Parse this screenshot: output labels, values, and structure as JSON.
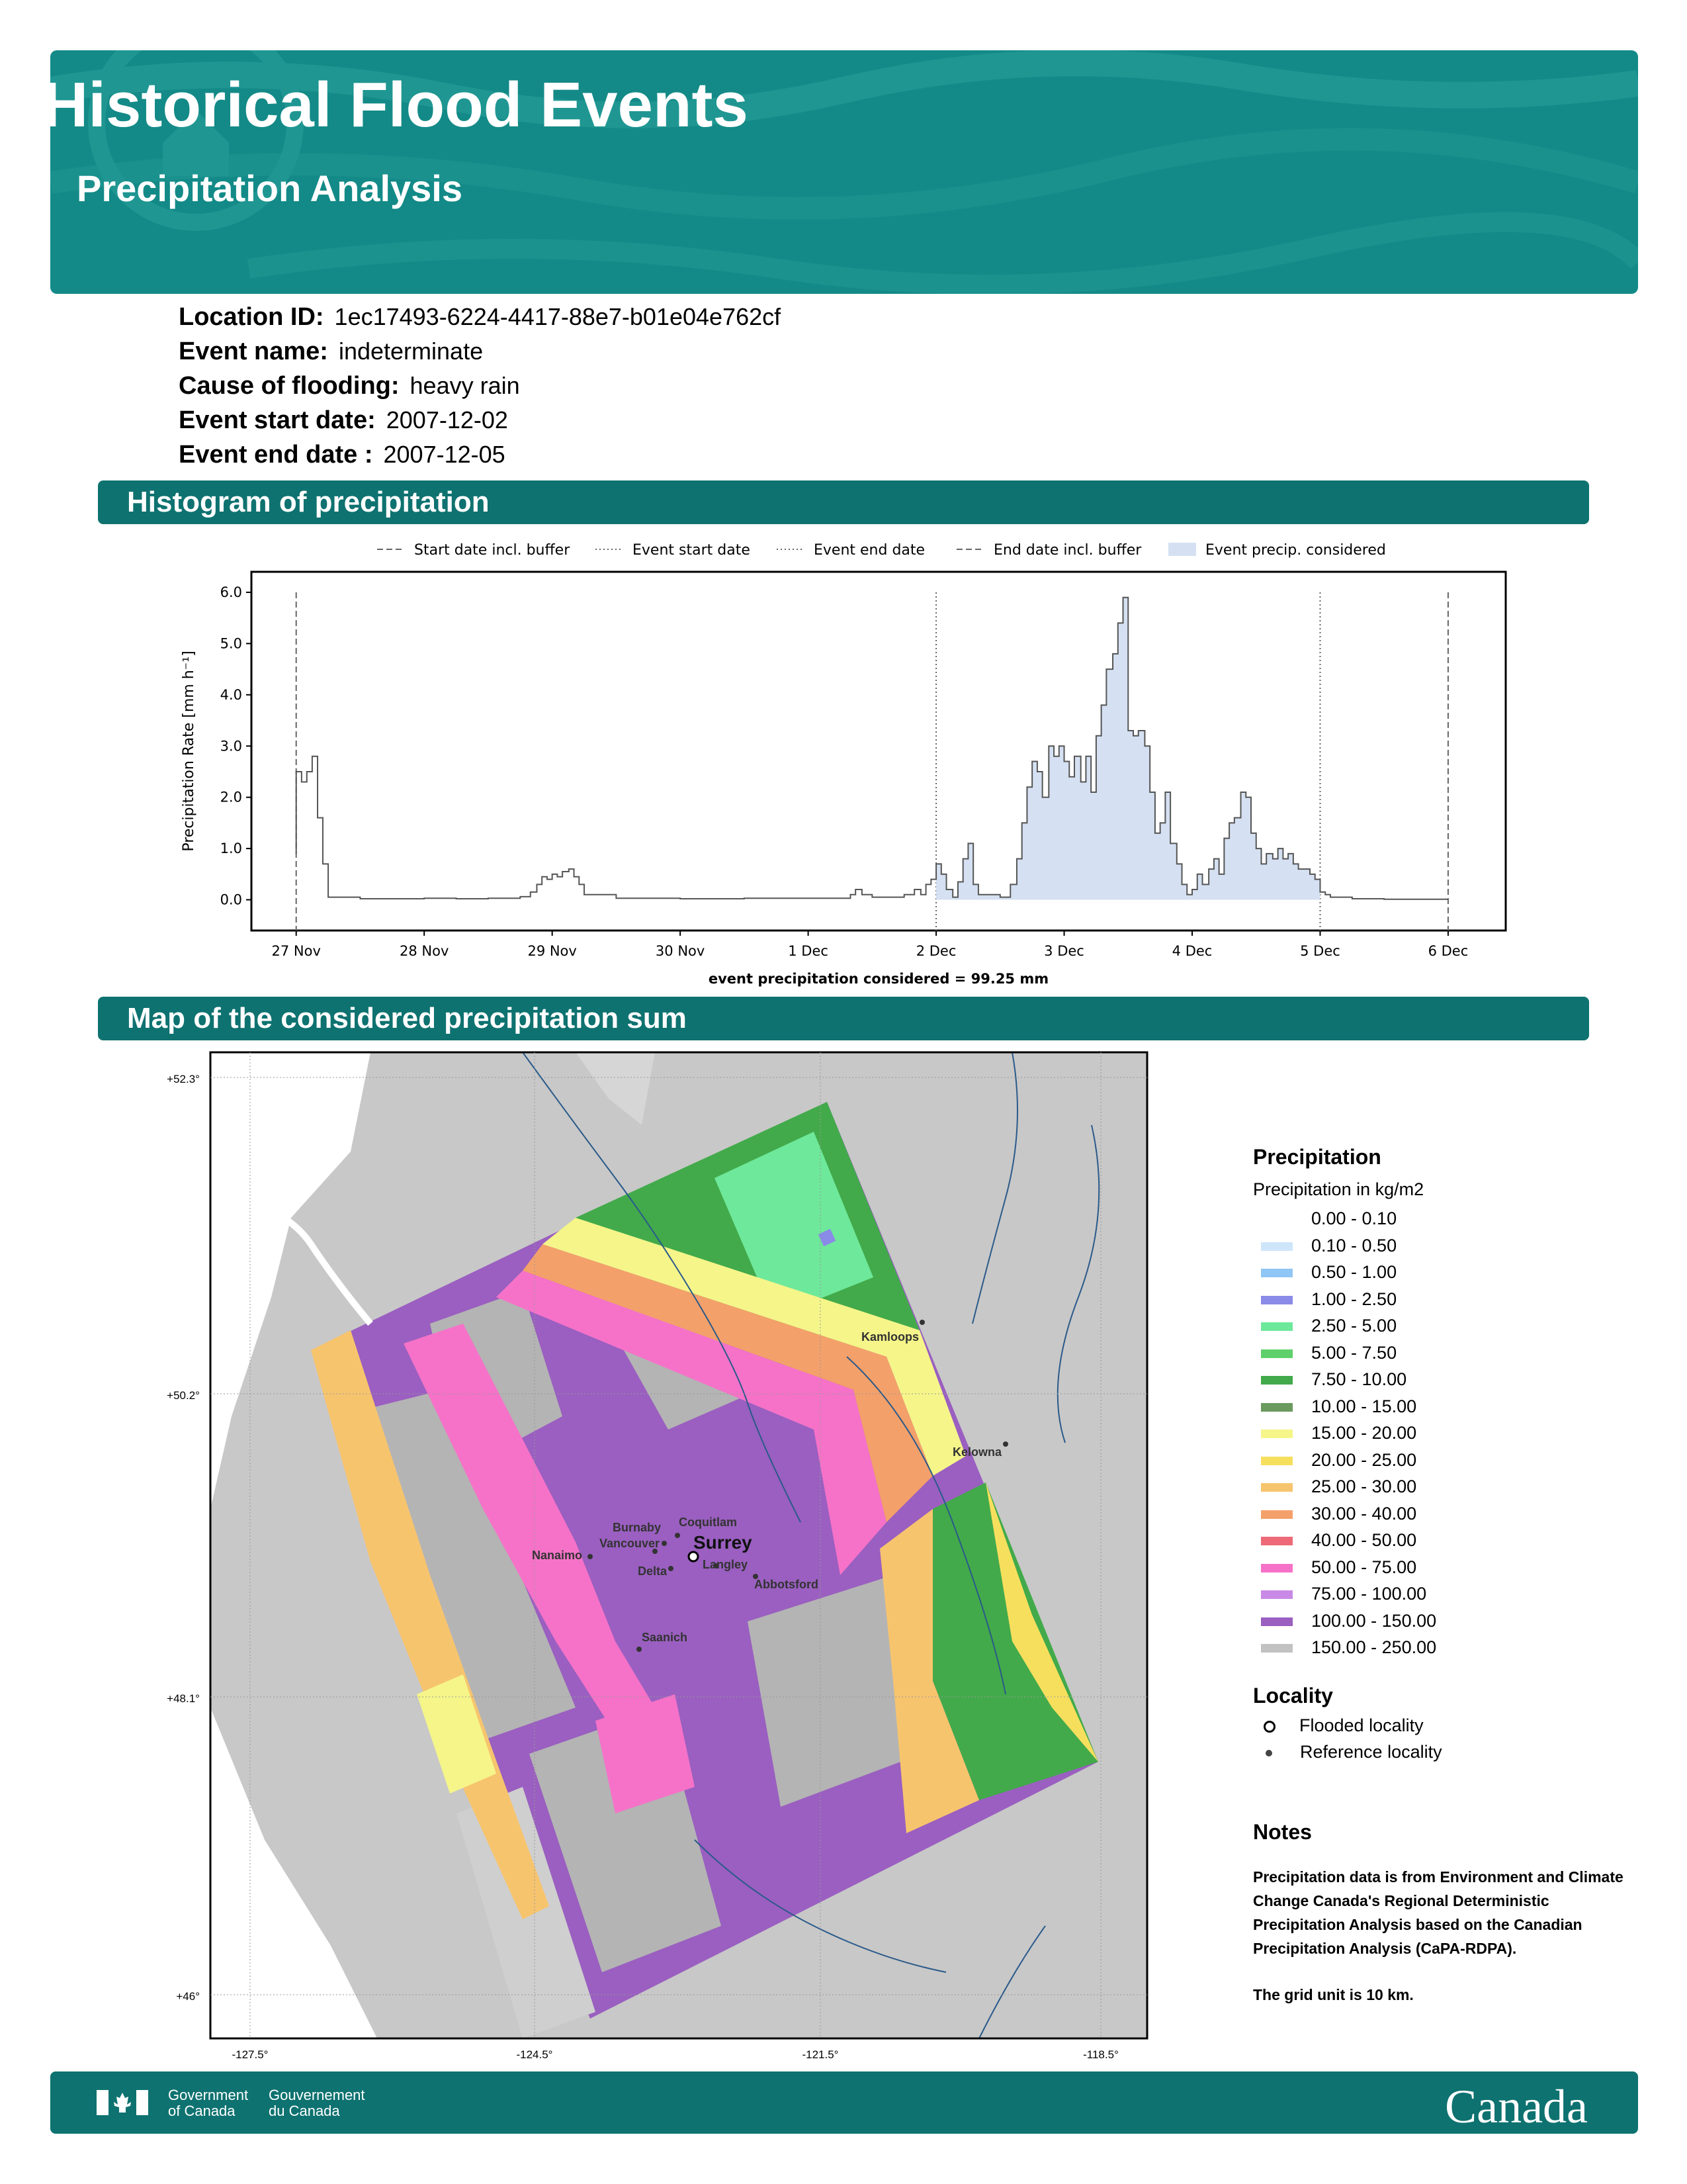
{
  "header": {
    "title": "Historical Flood Events",
    "subtitle": "Precipitation Analysis"
  },
  "info": [
    {
      "label": "Location ID:",
      "value": "1ec17493-6224-4417-88e7-b01e04e762cf"
    },
    {
      "label": "Event name:",
      "value": "indeterminate"
    },
    {
      "label": "Cause of flooding:",
      "value": "heavy rain"
    },
    {
      "label": "Event start date:",
      "value": "2007-12-02"
    },
    {
      "label": "Event end date :",
      "value": "2007-12-05"
    }
  ],
  "sections": {
    "histogram": "Histogram of precipitation",
    "map": "Map of the considered precipitation sum"
  },
  "chart_data": {
    "type": "line",
    "ylabel": "Precipitation Rate [mm h⁻¹]",
    "xlabel": "event precipitation considered = 99.25 mm",
    "ylim": [
      -0.6,
      6.4
    ],
    "xlim_days": [
      -0.35,
      9.45
    ],
    "y_ticks": [
      "0.0",
      "1.0",
      "2.0",
      "3.0",
      "4.0",
      "5.0",
      "6.0"
    ],
    "x_ticks": [
      "27 Nov",
      "28 Nov",
      "29 Nov",
      "30 Nov",
      "1 Dec",
      "2 Dec",
      "3 Dec",
      "4 Dec",
      "5 Dec",
      "6 Dec"
    ],
    "legend": [
      {
        "label": "Start date incl. buffer",
        "style": "dashed"
      },
      {
        "label": "Event start date",
        "style": "dotted"
      },
      {
        "label": "Event end date",
        "style": "dotted"
      },
      {
        "label": "End date incl. buffer",
        "style": "dashed"
      },
      {
        "label": "Event precip. considered",
        "style": "fill"
      }
    ],
    "vlines": [
      {
        "date": "27 Nov",
        "style": "dashed"
      },
      {
        "date": "2 Dec",
        "style": "dotted"
      },
      {
        "date": "5 Dec",
        "style": "dotted"
      },
      {
        "date": "6 Dec",
        "style": "dashed"
      }
    ],
    "series": [
      {
        "x_unit": "days since 27 Nov 00:00",
        "values": [
          [
            0.0,
            2.5
          ],
          [
            0.042,
            2.3
          ],
          [
            0.083,
            2.5
          ],
          [
            0.125,
            2.8
          ],
          [
            0.167,
            1.6
          ],
          [
            0.208,
            0.7
          ],
          [
            0.25,
            0.05
          ],
          [
            0.5,
            0.02
          ],
          [
            0.75,
            0.02
          ],
          [
            1.0,
            0.03
          ],
          [
            1.25,
            0.02
          ],
          [
            1.5,
            0.03
          ],
          [
            1.75,
            0.06
          ],
          [
            1.83,
            0.15
          ],
          [
            1.88,
            0.3
          ],
          [
            1.92,
            0.45
          ],
          [
            1.96,
            0.4
          ],
          [
            2.0,
            0.5
          ],
          [
            2.04,
            0.45
          ],
          [
            2.08,
            0.55
          ],
          [
            2.13,
            0.6
          ],
          [
            2.17,
            0.45
          ],
          [
            2.21,
            0.3
          ],
          [
            2.25,
            0.1
          ],
          [
            2.5,
            0.03
          ],
          [
            3.0,
            0.02
          ],
          [
            3.5,
            0.03
          ],
          [
            4.0,
            0.03
          ],
          [
            4.33,
            0.1
          ],
          [
            4.37,
            0.2
          ],
          [
            4.42,
            0.1
          ],
          [
            4.5,
            0.05
          ],
          [
            4.75,
            0.1
          ],
          [
            4.83,
            0.2
          ],
          [
            4.88,
            0.1
          ],
          [
            4.92,
            0.3
          ],
          [
            4.96,
            0.4
          ],
          [
            5.0,
            0.7
          ],
          [
            5.04,
            0.5
          ],
          [
            5.08,
            0.2
          ],
          [
            5.13,
            0.05
          ],
          [
            5.17,
            0.35
          ],
          [
            5.21,
            0.8
          ],
          [
            5.25,
            1.1
          ],
          [
            5.29,
            0.3
          ],
          [
            5.33,
            0.1
          ],
          [
            5.5,
            0.05
          ],
          [
            5.58,
            0.3
          ],
          [
            5.63,
            0.8
          ],
          [
            5.67,
            1.5
          ],
          [
            5.71,
            2.2
          ],
          [
            5.75,
            2.7
          ],
          [
            5.79,
            2.5
          ],
          [
            5.83,
            2.0
          ],
          [
            5.88,
            3.0
          ],
          [
            5.92,
            2.8
          ],
          [
            5.96,
            3.0
          ],
          [
            6.0,
            2.7
          ],
          [
            6.04,
            2.4
          ],
          [
            6.08,
            2.8
          ],
          [
            6.13,
            2.3
          ],
          [
            6.17,
            2.8
          ],
          [
            6.21,
            2.1
          ],
          [
            6.25,
            3.2
          ],
          [
            6.29,
            3.8
          ],
          [
            6.33,
            4.5
          ],
          [
            6.38,
            4.8
          ],
          [
            6.42,
            5.4
          ],
          [
            6.46,
            5.9
          ],
          [
            6.5,
            3.3
          ],
          [
            6.54,
            3.2
          ],
          [
            6.58,
            3.3
          ],
          [
            6.63,
            3.0
          ],
          [
            6.67,
            2.1
          ],
          [
            6.71,
            1.3
          ],
          [
            6.75,
            1.5
          ],
          [
            6.79,
            2.1
          ],
          [
            6.83,
            1.1
          ],
          [
            6.88,
            0.7
          ],
          [
            6.92,
            0.3
          ],
          [
            6.96,
            0.1
          ],
          [
            7.0,
            0.2
          ],
          [
            7.04,
            0.5
          ],
          [
            7.08,
            0.3
          ],
          [
            7.13,
            0.6
          ],
          [
            7.17,
            0.8
          ],
          [
            7.21,
            0.5
          ],
          [
            7.25,
            1.2
          ],
          [
            7.29,
            1.5
          ],
          [
            7.33,
            1.6
          ],
          [
            7.38,
            2.1
          ],
          [
            7.42,
            2.0
          ],
          [
            7.46,
            1.3
          ],
          [
            7.5,
            1.0
          ],
          [
            7.54,
            0.7
          ],
          [
            7.58,
            0.9
          ],
          [
            7.63,
            0.8
          ],
          [
            7.67,
            1.0
          ],
          [
            7.71,
            0.8
          ],
          [
            7.75,
            0.9
          ],
          [
            7.79,
            0.7
          ],
          [
            7.83,
            0.6
          ],
          [
            7.88,
            0.6
          ],
          [
            7.92,
            0.5
          ],
          [
            7.96,
            0.4
          ],
          [
            8.0,
            0.15
          ],
          [
            8.04,
            0.1
          ],
          [
            8.08,
            0.05
          ],
          [
            8.25,
            0.02
          ],
          [
            8.5,
            0.01
          ],
          [
            9.0,
            0.01
          ]
        ]
      }
    ]
  },
  "map": {
    "lat_ticks": [
      "+52.3°",
      "+50.2°",
      "+48.1°",
      "+46°"
    ],
    "lon_ticks": [
      "-127.5°",
      "-124.5°",
      "-121.5°",
      "-118.5°"
    ],
    "localities": [
      {
        "name": "Surrey",
        "type": "flooded"
      },
      {
        "name": "Kamloops",
        "type": "reference"
      },
      {
        "name": "Kelowna",
        "type": "reference"
      },
      {
        "name": "Coquitlam",
        "type": "reference"
      },
      {
        "name": "Burnaby",
        "type": "reference"
      },
      {
        "name": "Vancouver",
        "type": "reference"
      },
      {
        "name": "Nanaimo",
        "type": "reference"
      },
      {
        "name": "Delta",
        "type": "reference"
      },
      {
        "name": "Langley",
        "type": "reference"
      },
      {
        "name": "Abbotsford",
        "type": "reference"
      },
      {
        "name": "Saanich",
        "type": "reference"
      }
    ]
  },
  "legend": {
    "title": "Precipitation",
    "subtitle": "Precipitation in kg/m2",
    "items": [
      {
        "label": "0.00 - 0.10",
        "color": "#ffffff"
      },
      {
        "label": "0.10 - 0.50",
        "color": "#cfe6fa"
      },
      {
        "label": "0.50 - 1.00",
        "color": "#8fc6f5"
      },
      {
        "label": "1.00 - 2.50",
        "color": "#8a8ae8"
      },
      {
        "label": "2.50 - 5.00",
        "color": "#6ee89a"
      },
      {
        "label": "5.00 - 7.50",
        "color": "#5fd06a"
      },
      {
        "label": "7.50 - 10.00",
        "color": "#42aa4a"
      },
      {
        "label": "10.00 - 15.00",
        "color": "#6a9a5e"
      },
      {
        "label": "15.00 - 20.00",
        "color": "#f5f58a"
      },
      {
        "label": "20.00 - 25.00",
        "color": "#f7df5e"
      },
      {
        "label": "25.00 - 30.00",
        "color": "#f7c46e"
      },
      {
        "label": "30.00 - 40.00",
        "color": "#f4a06a"
      },
      {
        "label": "40.00 - 50.00",
        "color": "#ee6a78"
      },
      {
        "label": "50.00 - 75.00",
        "color": "#f572c8"
      },
      {
        "label": "75.00 - 100.00",
        "color": "#c88ae6"
      },
      {
        "label": "100.00 - 150.00",
        "color": "#9a5fc0"
      },
      {
        "label": "150.00 - 250.00",
        "color": "#c2c2c2"
      }
    ]
  },
  "locality_legend": {
    "title": "Locality",
    "items": [
      {
        "label": "Flooded locality"
      },
      {
        "label": "Reference locality"
      }
    ]
  },
  "notes": {
    "title": "Notes",
    "paragraphs": [
      "Precipitation data is from Environment and Climate Change Canada's Regional Deterministic Precipitation Analysis based on the Canadian Precipitation Analysis (CaPA-RDPA).",
      "The grid unit is 10 km."
    ]
  },
  "footer": {
    "gov_en_1": "Government",
    "gov_en_2": "of Canada",
    "gov_fr_1": "Gouvernement",
    "gov_fr_2": "du Canada",
    "wordmark": "Canada"
  },
  "colors": {
    "header": "#138a87",
    "bar": "#0e7270",
    "fill": "#d5e1f2"
  }
}
